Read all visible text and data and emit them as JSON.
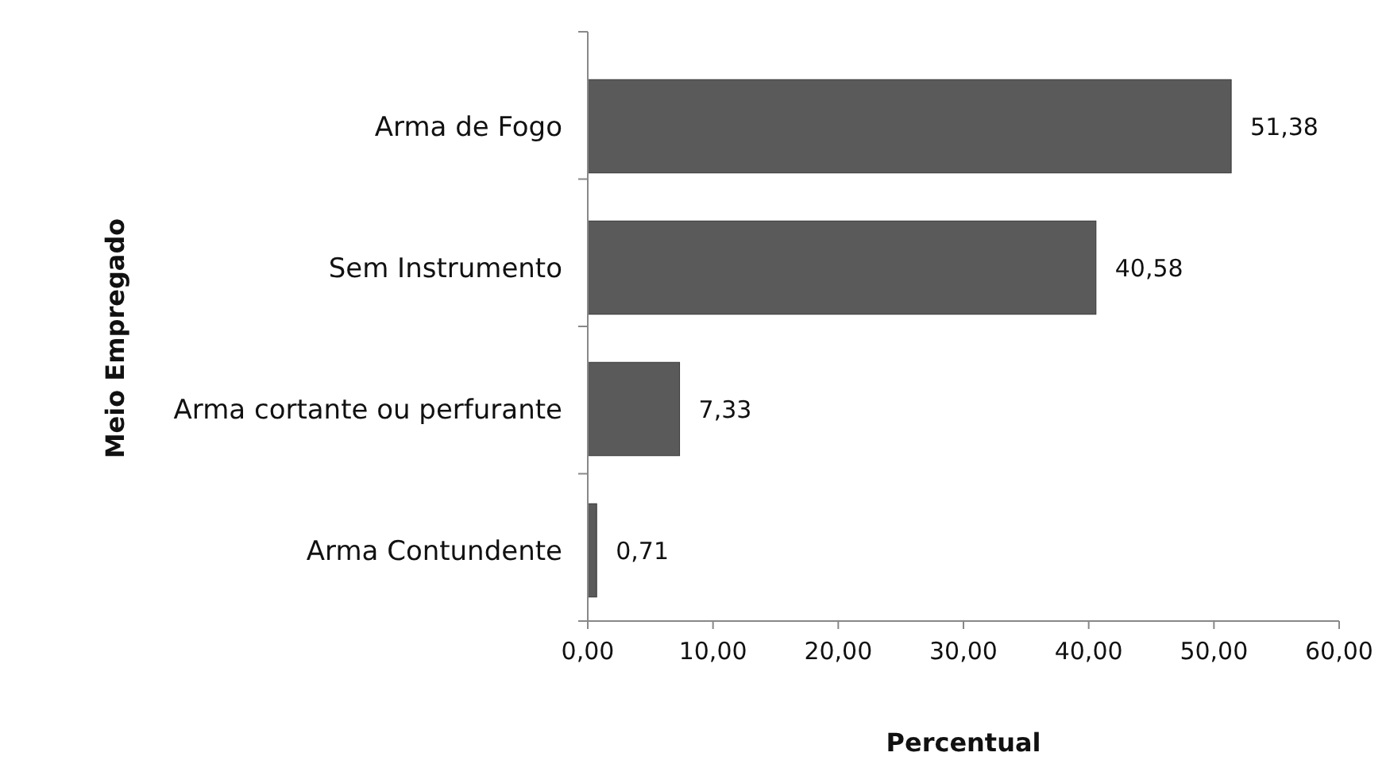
{
  "chart_data": {
    "type": "bar",
    "orientation": "horizontal",
    "xlabel": "Percentual",
    "ylabel": "Meio Empregado",
    "categories": [
      "Arma de Fogo",
      "Sem Instrumento",
      "Arma cortante ou perfurante",
      "Arma Contundente"
    ],
    "values": [
      51.38,
      40.58,
      7.33,
      0.71
    ],
    "value_labels": [
      "51,38",
      "40,58",
      "7,33",
      "0,71"
    ],
    "color": "#5a5a5a",
    "xlim": [
      0,
      60
    ],
    "xticks": [
      {
        "value": 0,
        "label": "0,00"
      },
      {
        "value": 10,
        "label": "10,00"
      },
      {
        "value": 20,
        "label": "20,00"
      },
      {
        "value": 30,
        "label": "30,00"
      },
      {
        "value": 40,
        "label": "40,00"
      },
      {
        "value": 50,
        "label": "50,00"
      },
      {
        "value": 60,
        "label": "60,00"
      }
    ],
    "grid": false
  }
}
